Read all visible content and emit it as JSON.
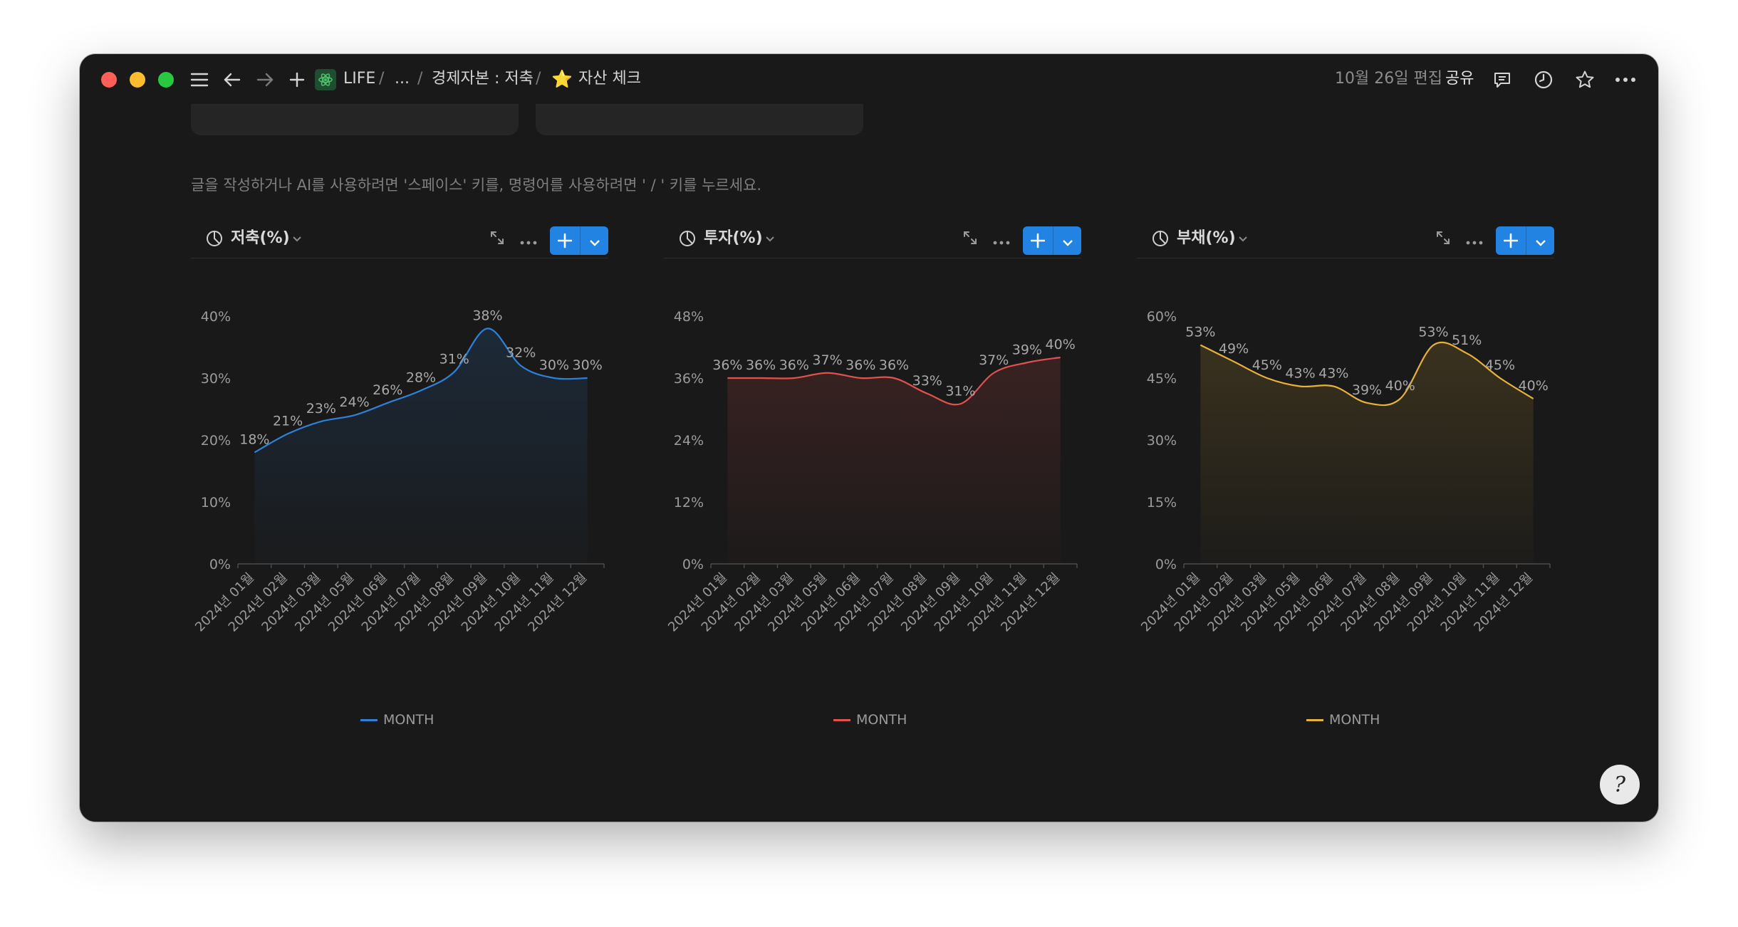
{
  "titlebar": {
    "workspace": "LIFE",
    "ellipsis": "...",
    "crumb_parent": "경제자본 : 저축",
    "crumb_page_icon": "⭐",
    "crumb_page": "자산 체크",
    "edited": "10월 26일 편집",
    "share": "공유"
  },
  "editor": {
    "placeholder": "글을 작성하거나 AI를 사용하려면 '스페이스' 키를, 명령어를 사용하려면 ' / ' 키를 누르세요."
  },
  "charts": [
    {
      "title": "저축(%)",
      "legend": "MONTH",
      "color": "#2f80d8"
    },
    {
      "title": "투자(%)",
      "legend": "MONTH",
      "color": "#e0524e"
    },
    {
      "title": "부채(%)",
      "legend": "MONTH",
      "color": "#e6b23a"
    }
  ],
  "chart_data": [
    {
      "type": "area",
      "title": "저축(%)",
      "categories": [
        "2024년 01월",
        "2024년 02월",
        "2024년 03월",
        "2024년 05월",
        "2024년 06월",
        "2024년 07월",
        "2024년 08월",
        "2024년 09월",
        "2024년 10월",
        "2024년 11월",
        "2024년 12월"
      ],
      "series": [
        {
          "name": "MONTH",
          "values": [
            18,
            21,
            23,
            24,
            26,
            28,
            31,
            38,
            32,
            30,
            30
          ],
          "color": "#2f80d8"
        }
      ],
      "value_labels": [
        "18%",
        "21%",
        "23%",
        "24%",
        "26%",
        "28%",
        "31%",
        "38%",
        "32%",
        "30%",
        "30%"
      ],
      "ylim": [
        0,
        40
      ],
      "yticks": [
        "0%",
        "10%",
        "20%",
        "30%",
        "40%"
      ],
      "legend": "bottom"
    },
    {
      "type": "area",
      "title": "투자(%)",
      "categories": [
        "2024년 01월",
        "2024년 02월",
        "2024년 03월",
        "2024년 05월",
        "2024년 06월",
        "2024년 07월",
        "2024년 08월",
        "2024년 09월",
        "2024년 10월",
        "2024년 11월",
        "2024년 12월"
      ],
      "series": [
        {
          "name": "MONTH",
          "values": [
            36,
            36,
            36,
            37,
            36,
            36,
            33,
            31,
            37,
            39,
            40
          ],
          "color": "#e0524e"
        }
      ],
      "value_labels": [
        "36%",
        "36%",
        "36%",
        "37%",
        "36%",
        "36%",
        "33%",
        "31%",
        "37%",
        "39%",
        "40%"
      ],
      "ylim": [
        0,
        48
      ],
      "yticks": [
        "0%",
        "12%",
        "24%",
        "36%",
        "48%"
      ],
      "legend": "bottom"
    },
    {
      "type": "area",
      "title": "부채(%)",
      "categories": [
        "2024년 01월",
        "2024년 02월",
        "2024년 03월",
        "2024년 05월",
        "2024년 06월",
        "2024년 07월",
        "2024년 08월",
        "2024년 09월",
        "2024년 10월",
        "2024년 11월",
        "2024년 12월"
      ],
      "series": [
        {
          "name": "MONTH",
          "values": [
            53,
            49,
            45,
            43,
            43,
            39,
            40,
            53,
            51,
            45,
            40
          ],
          "color": "#e6b23a"
        }
      ],
      "value_labels": [
        "53%",
        "49%",
        "45%",
        "43%",
        "43%",
        "39%",
        "40%",
        "53%",
        "51%",
        "45%",
        "40%"
      ],
      "ylim": [
        0,
        60
      ],
      "yticks": [
        "0%",
        "15%",
        "30%",
        "45%",
        "60%"
      ],
      "legend": "bottom"
    }
  ]
}
